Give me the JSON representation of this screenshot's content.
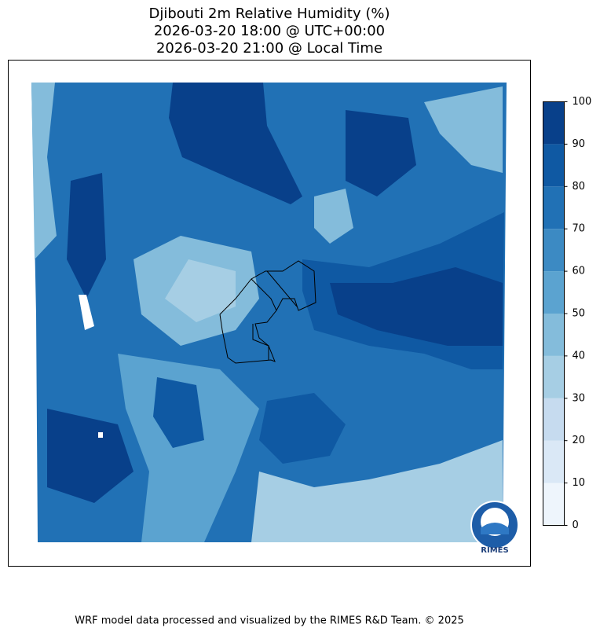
{
  "header": {
    "title": [
      "Djibouti 2m Relative Humidity (%)",
      "2026-03-20 18:00 @ UTC+00:00",
      "2026-03-20 21:00 @ Local Time"
    ]
  },
  "colorbar": {
    "ticks": [
      0,
      10,
      20,
      30,
      40,
      50,
      60,
      70,
      80,
      90,
      100
    ],
    "colors": [
      "#eef5fc",
      "#dae8f6",
      "#c6dbef",
      "#a6cee4",
      "#84bcdb",
      "#5ba3d0",
      "#3c8ac3",
      "#2171b5",
      "#0f59a3",
      "#08408a"
    ]
  },
  "logo": "RIMES",
  "footer": "WRF model data processed and visualized by the RIMES R&D Team. © 2025"
}
